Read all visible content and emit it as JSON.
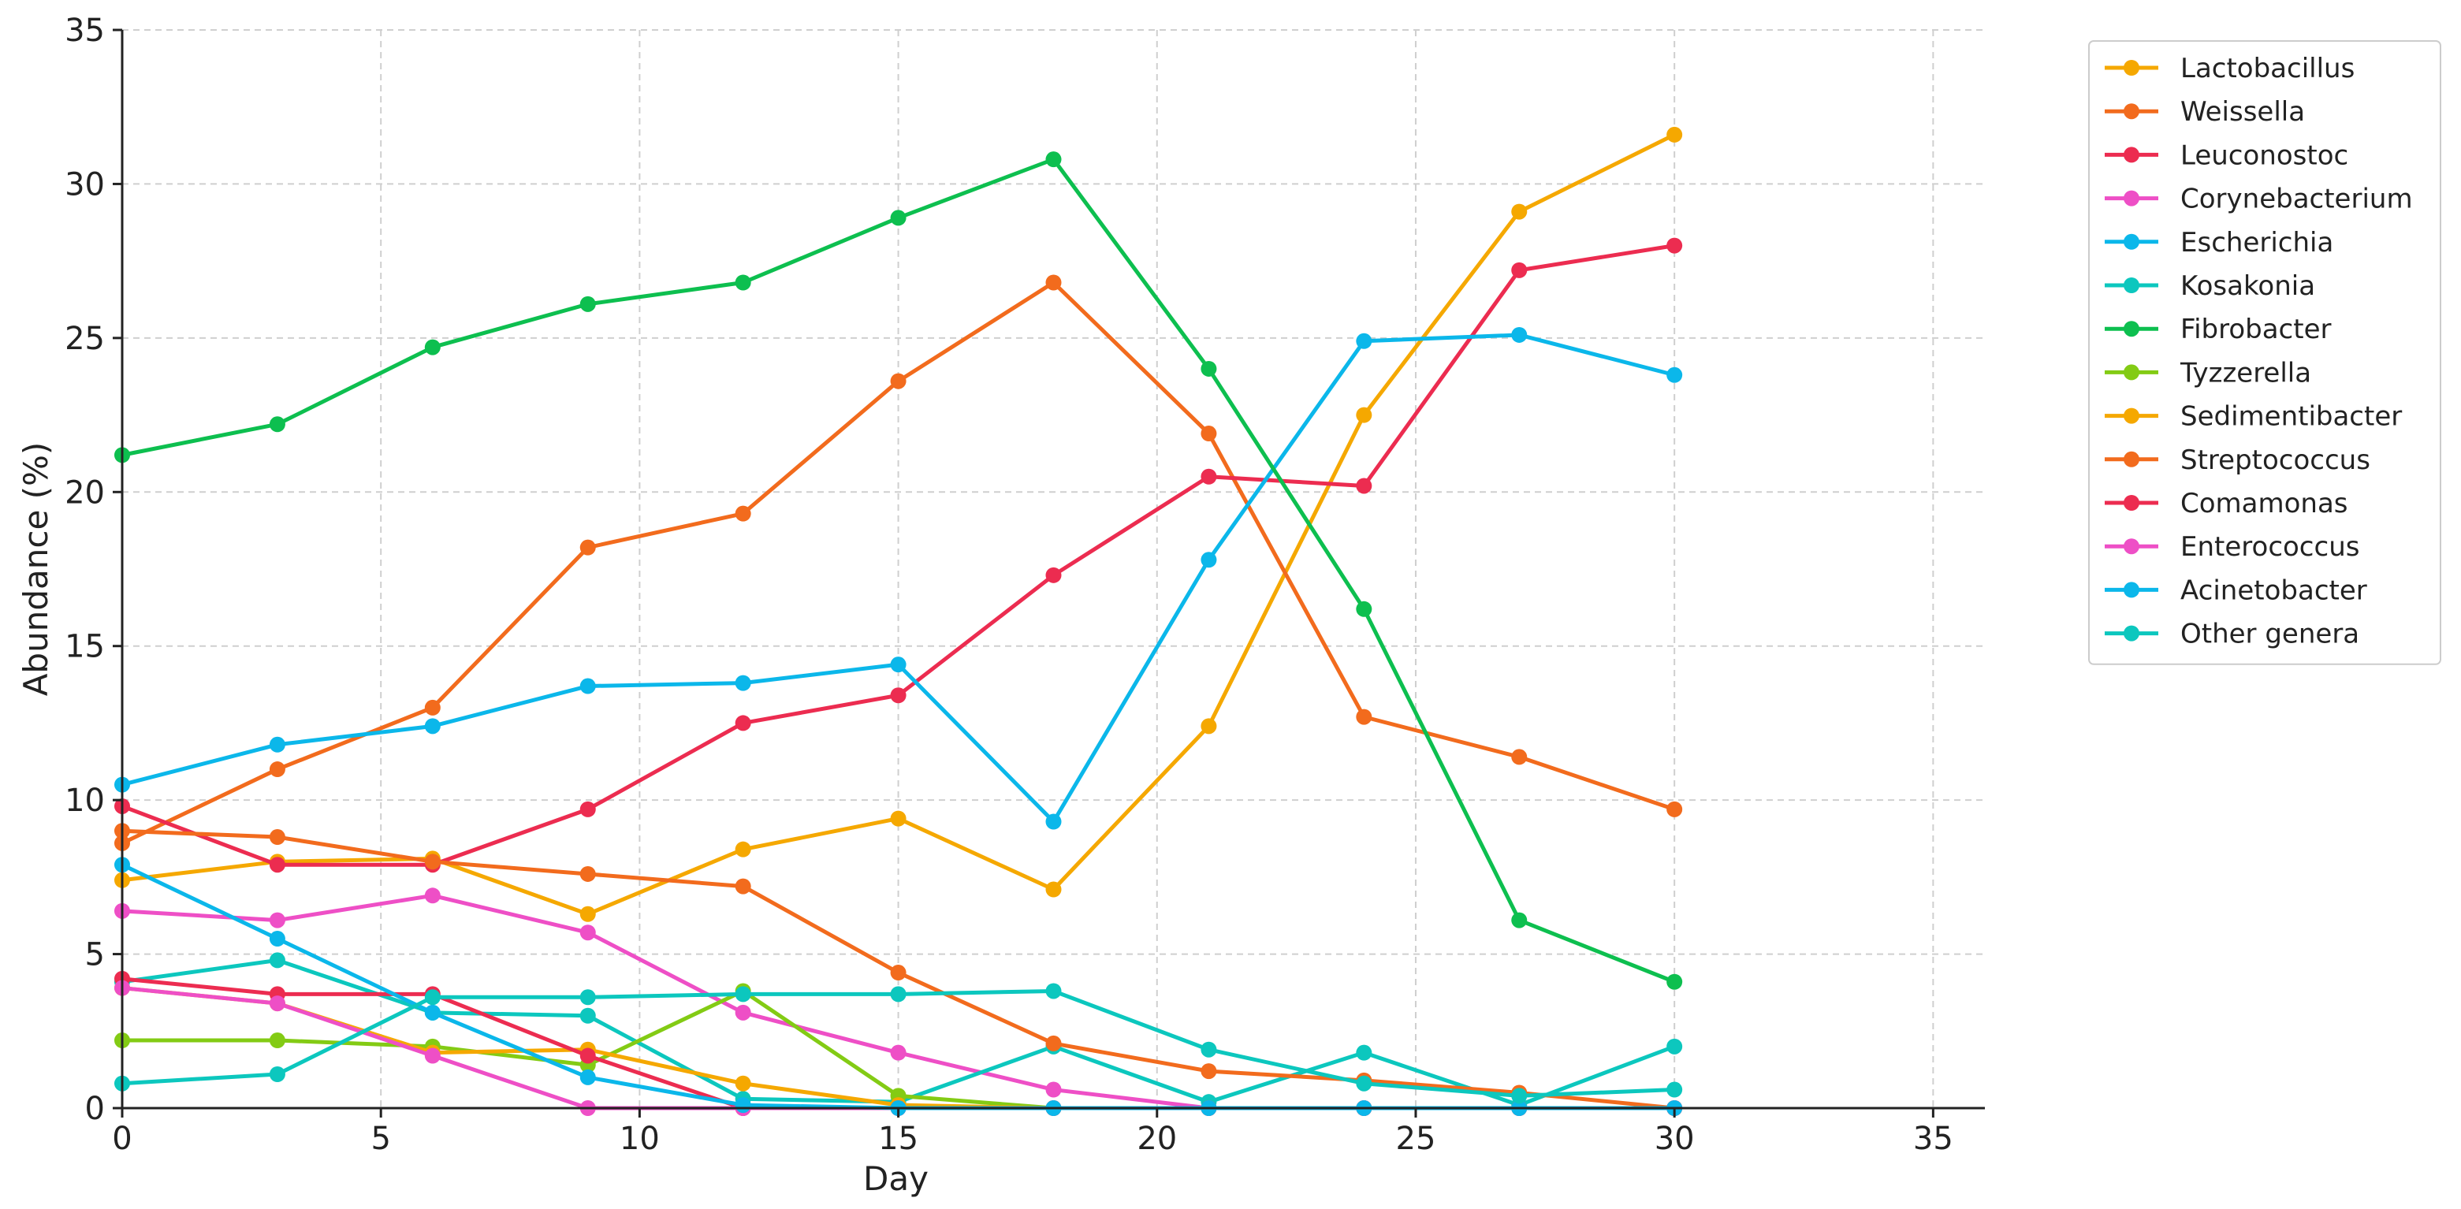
{
  "chart_data": {
    "type": "line",
    "xlabel": "Day",
    "ylabel": "Abundance (%)",
    "xlim": [
      0,
      36
    ],
    "ylim": [
      0,
      35
    ],
    "xticks": [
      "0",
      "5",
      "10",
      "15",
      "20",
      "25",
      "30",
      "35"
    ],
    "yticks": [
      "0",
      "5",
      "10",
      "15",
      "20",
      "25",
      "30",
      "35"
    ],
    "grid": true,
    "legend_position": "outside-top-right",
    "x": [
      0,
      3,
      6,
      9,
      12,
      15,
      18,
      21,
      24,
      27,
      30
    ],
    "series": [
      {
        "name": "Lactobacillus",
        "color": "#F5A800",
        "values": [
          7.4,
          8.0,
          8.1,
          6.3,
          8.4,
          9.4,
          7.1,
          12.4,
          22.5,
          29.1,
          31.6
        ]
      },
      {
        "name": "Weissella",
        "color": "#F26B1D",
        "values": [
          8.6,
          11.0,
          13.0,
          18.2,
          19.3,
          23.6,
          26.8,
          21.9,
          12.7,
          11.4,
          9.7
        ]
      },
      {
        "name": "Leuconostoc",
        "color": "#EC2C50",
        "values": [
          9.8,
          7.9,
          7.9,
          9.7,
          12.5,
          13.4,
          17.3,
          20.5,
          20.2,
          27.2,
          28.0
        ]
      },
      {
        "name": "Corynebacterium",
        "color": "#EE4FC6",
        "values": [
          6.4,
          6.1,
          6.9,
          5.7,
          3.1,
          1.8,
          0.6,
          0.0,
          0.0,
          0.0,
          0.0
        ]
      },
      {
        "name": "Escherichia",
        "color": "#0BB7EA",
        "values": [
          10.5,
          11.8,
          12.4,
          13.7,
          13.8,
          14.4,
          9.3,
          17.8,
          24.9,
          25.1,
          23.8
        ]
      },
      {
        "name": "Kosakonia",
        "color": "#0CC7BE",
        "values": [
          4.1,
          4.8,
          3.1,
          3.0,
          0.3,
          0.2,
          2.0,
          0.2,
          1.8,
          0.1,
          2.0
        ]
      },
      {
        "name": "Fibrobacter",
        "color": "#0DBF4F",
        "values": [
          21.2,
          22.2,
          24.7,
          26.1,
          26.8,
          28.9,
          30.8,
          24.0,
          16.2,
          6.1,
          4.1
        ]
      },
      {
        "name": "Tyzzerella",
        "color": "#83CB14",
        "values": [
          2.2,
          2.2,
          2.0,
          1.4,
          3.8,
          0.4,
          0.0,
          0.0,
          0.0,
          0.0,
          0.0
        ]
      },
      {
        "name": "Sedimentibacter",
        "color": "#F5A800",
        "values": [
          3.9,
          3.4,
          1.8,
          1.9,
          0.8,
          0.1,
          0.0,
          0.0,
          0.0,
          0.0,
          0.0
        ]
      },
      {
        "name": "Streptococcus",
        "color": "#F26B1D",
        "values": [
          9.0,
          8.8,
          8.0,
          7.6,
          7.2,
          4.4,
          2.1,
          1.2,
          0.9,
          0.5,
          0.0
        ]
      },
      {
        "name": "Comamonas",
        "color": "#EC2C50",
        "values": [
          4.2,
          3.7,
          3.7,
          1.7,
          0.0,
          0.0,
          0.0,
          0.0,
          0.0,
          0.0,
          0.0
        ]
      },
      {
        "name": "Enterococcus",
        "color": "#EE4FC6",
        "values": [
          3.9,
          3.4,
          1.7,
          0.0,
          0.0,
          0.0,
          0.0,
          0.0,
          0.0,
          0.0,
          0.0
        ]
      },
      {
        "name": "Acinetobacter",
        "color": "#0BB7EA",
        "values": [
          7.9,
          5.5,
          3.1,
          1.0,
          0.1,
          0.0,
          0.0,
          0.0,
          0.0,
          0.0,
          0.0
        ]
      },
      {
        "name": "Other genera",
        "color": "#0CC7BE",
        "values": [
          0.8,
          1.1,
          3.6,
          3.6,
          3.7,
          3.7,
          3.8,
          1.9,
          0.8,
          0.4,
          0.6
        ]
      }
    ]
  }
}
